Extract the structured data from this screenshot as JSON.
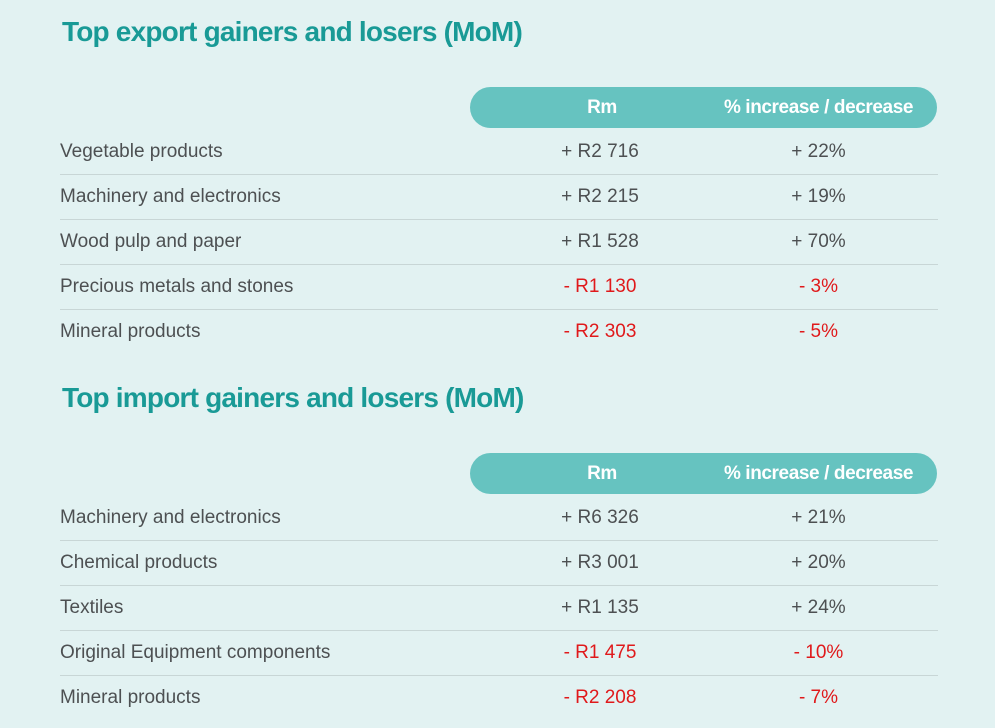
{
  "exports": {
    "title": "Top export gainers and losers (MoM)",
    "headers": {
      "rm": "Rm",
      "pct": "% increase / decrease"
    },
    "rows": [
      {
        "label": "Vegetable products",
        "rm": "+ R2 716",
        "pct": "+ 22%"
      },
      {
        "label": "Machinery and electronics",
        "rm": "+ R2 215",
        "pct": "+ 19%"
      },
      {
        "label": "Wood pulp and paper",
        "rm": "+ R1 528",
        "pct": "+ 70%"
      },
      {
        "label": "Precious metals and stones",
        "rm": "- R1 130",
        "pct": "- 3%"
      },
      {
        "label": "Mineral products",
        "rm": "- R2 303",
        "pct": "- 5%"
      }
    ]
  },
  "imports": {
    "title": "Top import gainers and losers (MoM)",
    "headers": {
      "rm": "Rm",
      "pct": "% increase / decrease"
    },
    "rows": [
      {
        "label": "Machinery and electronics",
        "rm": "+ R6 326",
        "pct": "+ 21%"
      },
      {
        "label": "Chemical products",
        "rm": "+ R3 001",
        "pct": "+ 20%"
      },
      {
        "label": "Textiles",
        "rm": "+ R1 135",
        "pct": "+ 24%"
      },
      {
        "label": "Original Equipment components",
        "rm": "- R1 475",
        "pct": "- 10%"
      },
      {
        "label": "Mineral products",
        "rm": "- R2 208",
        "pct": "- 7%"
      }
    ]
  },
  "colors": {
    "background": "#e2f2f2",
    "title": "#199a96",
    "header_fill": "#66c3c0",
    "text": "#4d5052",
    "negative": "#e0191b"
  }
}
